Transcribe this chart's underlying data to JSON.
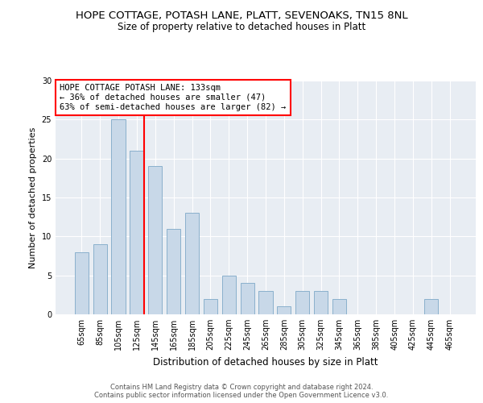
{
  "title": "HOPE COTTAGE, POTASH LANE, PLATT, SEVENOAKS, TN15 8NL",
  "subtitle": "Size of property relative to detached houses in Platt",
  "xlabel": "Distribution of detached houses by size in Platt",
  "ylabel": "Number of detached properties",
  "categories": [
    "65sqm",
    "85sqm",
    "105sqm",
    "125sqm",
    "145sqm",
    "165sqm",
    "185sqm",
    "205sqm",
    "225sqm",
    "245sqm",
    "265sqm",
    "285sqm",
    "305sqm",
    "325sqm",
    "345sqm",
    "365sqm",
    "385sqm",
    "405sqm",
    "425sqm",
    "445sqm",
    "465sqm"
  ],
  "values": [
    8,
    9,
    25,
    21,
    19,
    11,
    13,
    2,
    5,
    4,
    3,
    1,
    3,
    3,
    2,
    0,
    0,
    0,
    0,
    2,
    0
  ],
  "bar_color": "#c8d8e8",
  "bar_edgecolor": "#8ab0cc",
  "bar_width": 0.75,
  "ref_line_color": "red",
  "annotation_line1": "HOPE COTTAGE POTASH LANE: 133sqm",
  "annotation_line2": "← 36% of detached houses are smaller (47)",
  "annotation_line3": "63% of semi-detached houses are larger (82) →",
  "annotation_box_facecolor": "white",
  "annotation_box_edgecolor": "red",
  "ylim": [
    0,
    30
  ],
  "yticks": [
    0,
    5,
    10,
    15,
    20,
    25,
    30
  ],
  "background_color": "#e8edf3",
  "grid_color": "white",
  "footer_line1": "Contains HM Land Registry data © Crown copyright and database right 2024.",
  "footer_line2": "Contains public sector information licensed under the Open Government Licence v3.0.",
  "title_fontsize": 9.5,
  "subtitle_fontsize": 8.5,
  "xlabel_fontsize": 8.5,
  "ylabel_fontsize": 8,
  "tick_fontsize": 7,
  "footer_fontsize": 6,
  "annot_fontsize": 7.5
}
